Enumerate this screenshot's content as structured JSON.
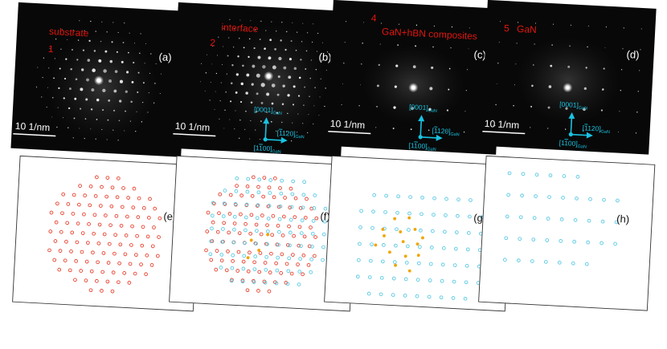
{
  "colors": {
    "tem_bg": "#080808",
    "annotation_red": "#e0160f",
    "label_white": "#ffffff",
    "axis_cyan": "#19c2e0",
    "sim_red": "#e8412f",
    "sim_cyan": "#59c9e3",
    "sim_orange": "#f0a500"
  },
  "panels": [
    {
      "id": "a",
      "label": "(a)",
      "region_number": "1",
      "region_name": "substrate",
      "scale_bar": "10 1/nm",
      "has_axes": false
    },
    {
      "id": "b",
      "label": "(b)",
      "region_number": "2",
      "region_name": "interface",
      "scale_bar": "10 1/nm",
      "has_axes": true
    },
    {
      "id": "c",
      "label": "(c)",
      "region_number": "4",
      "region_name": "GaN+hBN composites",
      "scale_bar": "10 1/nm",
      "has_axes": true
    },
    {
      "id": "d",
      "label": "(d)",
      "region_number": "5",
      "region_name": "GaN",
      "scale_bar": "10 1/nm",
      "has_axes": true
    }
  ],
  "axes": {
    "up": "[0001]",
    "right": "[1̅̅120]",
    "origin": "[1100]",
    "subscript": "GaN",
    "up_label": "[0001]",
    "right_label": "[",
    "right_bar": "1",
    "right_rest": "120]",
    "origin_label": "[1",
    "origin_bar": "1",
    "origin_rest": "00]"
  },
  "sim_panels": [
    {
      "id": "e",
      "label": "(e)"
    },
    {
      "id": "f",
      "label": "(f)"
    },
    {
      "id": "g",
      "label": "(g)"
    },
    {
      "id": "h",
      "label": "(h)"
    }
  ]
}
